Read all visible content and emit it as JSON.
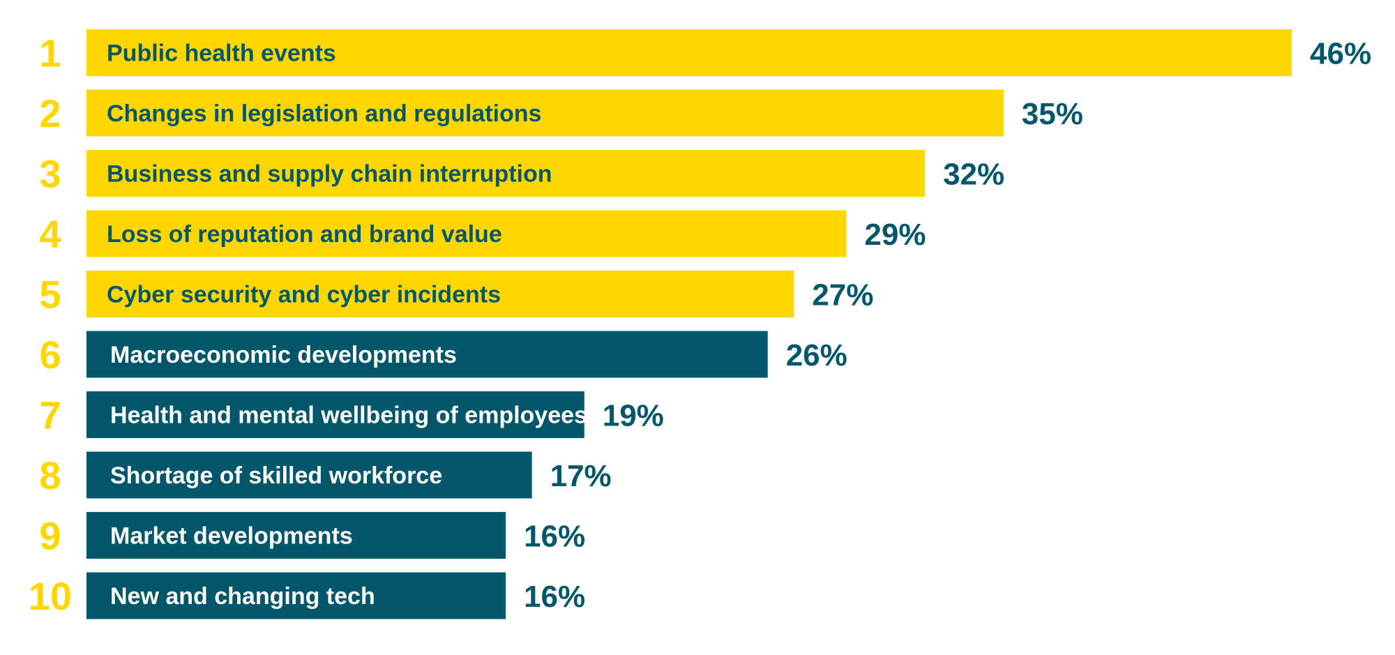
{
  "chart_data": {
    "type": "bar",
    "orientation": "horizontal",
    "title": "",
    "xlabel": "",
    "ylabel": "",
    "ranks": [
      "1",
      "2",
      "3",
      "4",
      "5",
      "6",
      "7",
      "8",
      "9",
      "10"
    ],
    "categories": [
      "Public health events",
      "Changes in legislation and regulations",
      "Business and supply chain interruption",
      "Loss of reputation and brand value",
      "Cyber security and cyber incidents",
      "Macroeconomic developments",
      "Health and mental wellbeing of employees",
      "Shortage of skilled workforce",
      "Market developments",
      "New and changing tech"
    ],
    "values": [
      46,
      35,
      32,
      29,
      27,
      26,
      19,
      17,
      16,
      16
    ],
    "value_labels": [
      "46%",
      "35%",
      "32%",
      "29%",
      "27%",
      "26%",
      "19%",
      "17%",
      "16%",
      "16%"
    ],
    "highlight_count": 5,
    "grid": false,
    "legend": "none",
    "colors": {
      "highlight_bar": "#FFD700",
      "highlight_text": "#02586A",
      "rank": "#FFD700",
      "other_bar": "#02586A",
      "other_text": "#FFFFFF",
      "value_text": "#02586A"
    }
  }
}
